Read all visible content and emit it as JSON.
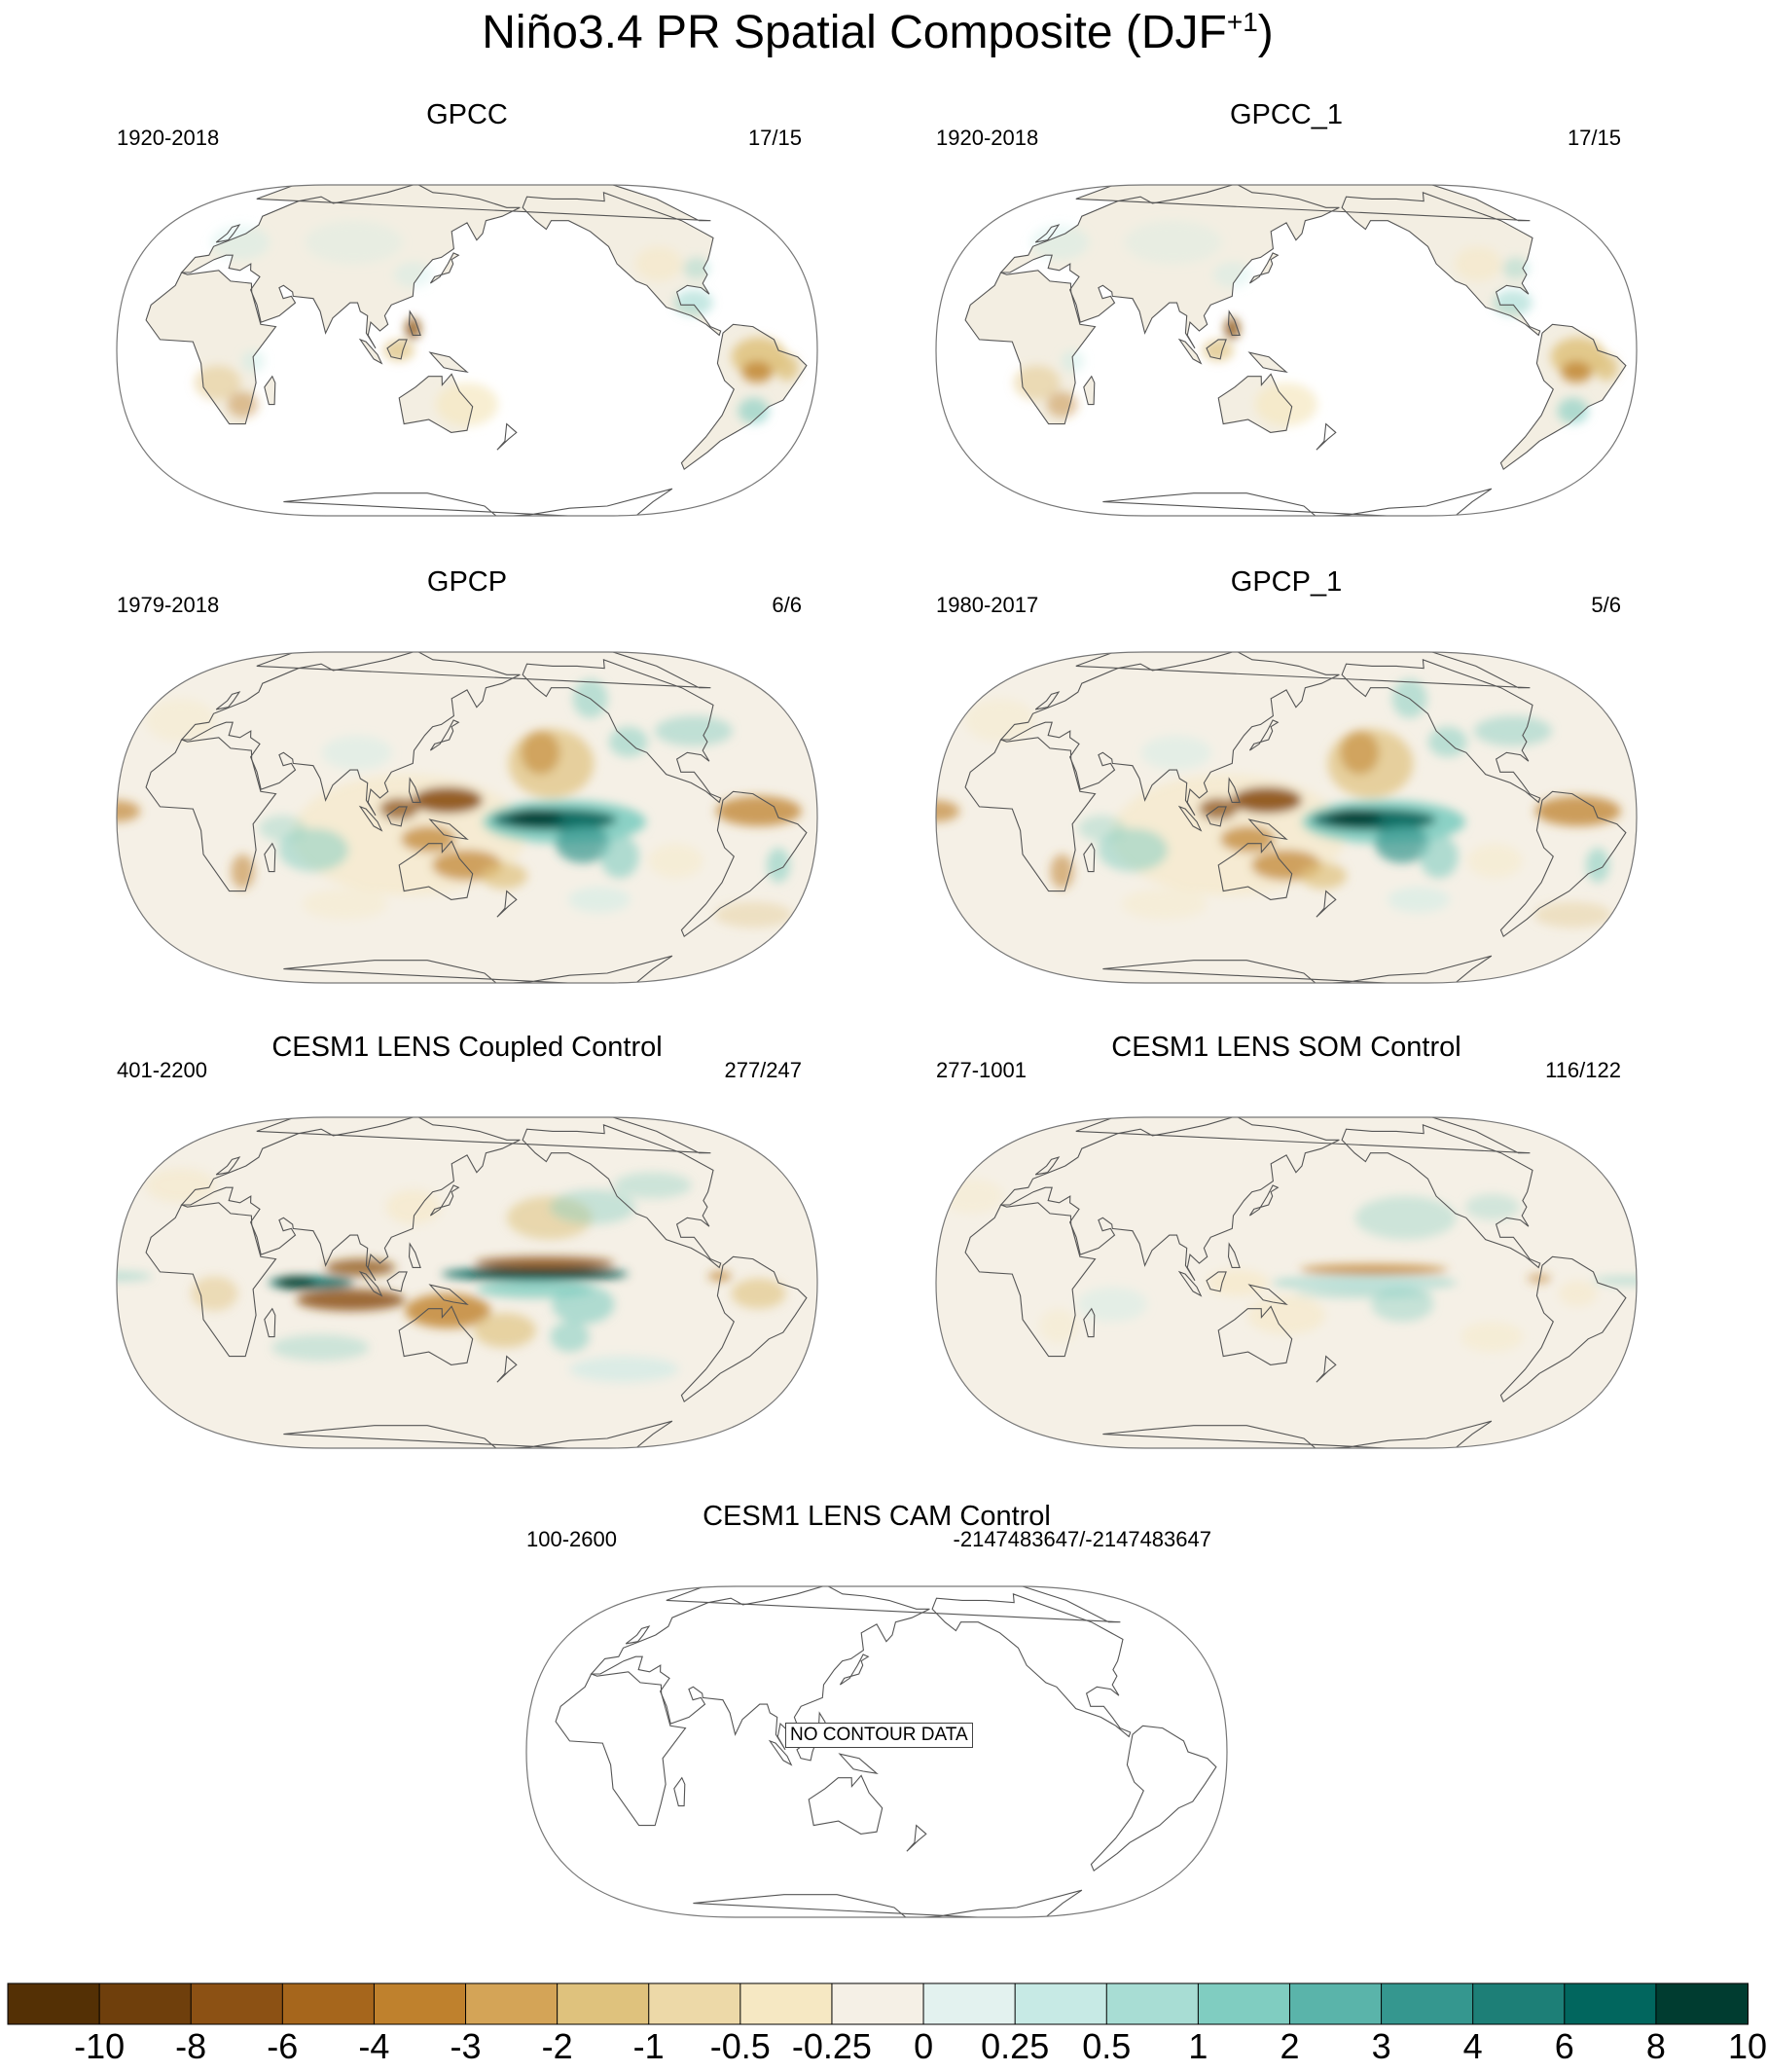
{
  "figure": {
    "title_main": "Niño3.4 PR Spatial Composite (DJF",
    "title_sup": "+1",
    "title_close": ")"
  },
  "panels": [
    {
      "id": "gpcc",
      "title": "GPCC",
      "range": "1920-2018",
      "count": "17/15",
      "pattern": "land"
    },
    {
      "id": "gpcc1",
      "title": "GPCC_1",
      "range": "1920-2018",
      "count": "17/15",
      "pattern": "land"
    },
    {
      "id": "gpcp",
      "title": "GPCP",
      "range": "1979-2018",
      "count": "6/6",
      "pattern": "obs"
    },
    {
      "id": "gpcp1",
      "title": "GPCP_1",
      "range": "1980-2017",
      "count": "5/6",
      "pattern": "obs"
    },
    {
      "id": "coupled",
      "title": "CESM1 LENS Coupled Control",
      "range": "401-2200",
      "count": "277/247",
      "pattern": "coupled"
    },
    {
      "id": "som",
      "title": "CESM1 LENS SOM Control",
      "range": "277-1001",
      "count": "116/122",
      "pattern": "som"
    },
    {
      "id": "cam",
      "title": "CESM1 LENS CAM Control",
      "range": "100-2600",
      "count": "-2147483647/-2147483647",
      "pattern": "none",
      "message": "NO CONTOUR DATA"
    }
  ],
  "colorbar": {
    "labels": [
      "-10",
      "-8",
      "-6",
      "-4",
      "-3",
      "-2",
      "-1",
      "-0.5",
      "-0.25",
      "0",
      "0.25",
      "0.5",
      "1",
      "2",
      "3",
      "4",
      "6",
      "8",
      "10"
    ],
    "colors": [
      "#543005",
      "#6f3f0c",
      "#8c5114",
      "#a6661c",
      "#bf812d",
      "#d4a457",
      "#dfc27d",
      "#edd9a8",
      "#f6e8c3",
      "#f5f0e6",
      "#e3f2ef",
      "#c7eae5",
      "#a8ddd4",
      "#80cdc1",
      "#5ab4aa",
      "#35978f",
      "#1d7f77",
      "#01665e",
      "#003c30"
    ]
  }
}
